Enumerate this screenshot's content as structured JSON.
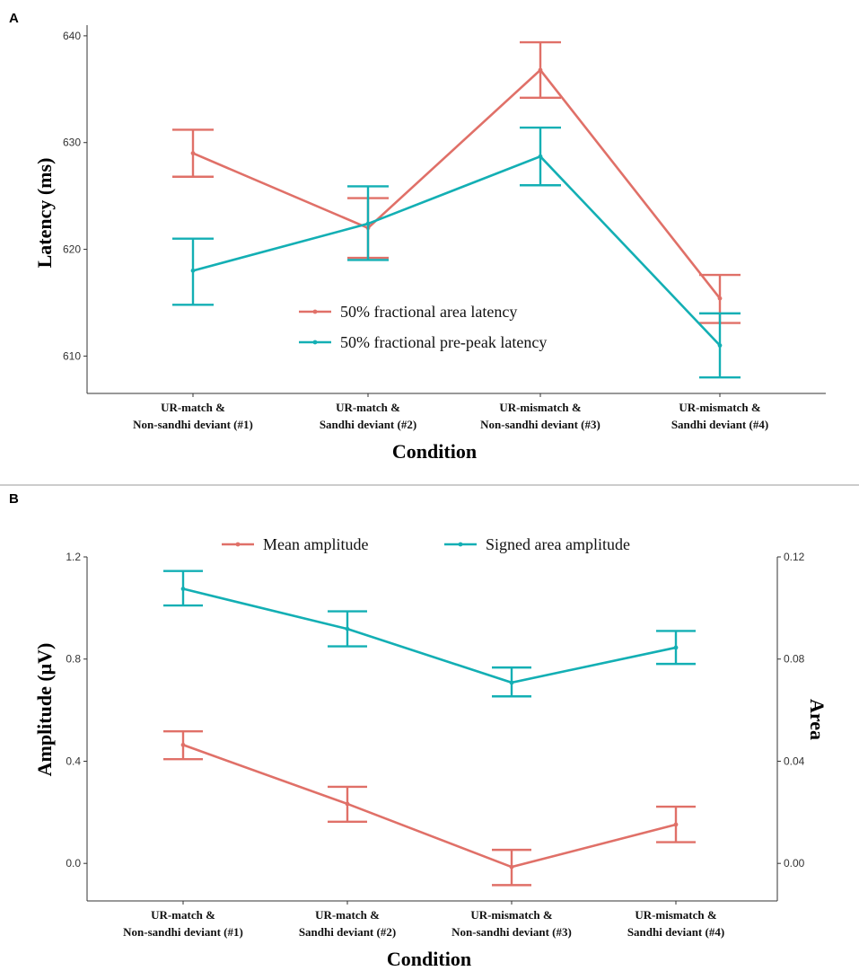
{
  "panels": [
    {
      "letter": "A",
      "type": "line",
      "chart_data": {
        "type": "line",
        "categories": [
          [
            "UR-match &",
            "Non-sandhi deviant (#1)"
          ],
          [
            "UR-match &",
            "Sandhi deviant (#2)"
          ],
          [
            "UR-mismatch &",
            "Non-sandhi deviant (#3)"
          ],
          [
            "UR-mismatch &",
            "Sandhi deviant (#4)"
          ]
        ],
        "xlabel": "Condition",
        "ylabel": "Latency (ms)",
        "ylim": [
          606.5,
          641
        ],
        "yticks": [
          610,
          620,
          630,
          640
        ],
        "yticklabels": [
          "610",
          "620",
          "630",
          "640"
        ],
        "legend_position": "center",
        "series": [
          {
            "name": "50% fractional area latency",
            "color": "#E07068",
            "values": [
              629.0,
              622.0,
              636.8,
              615.4
            ],
            "err_low": [
              626.8,
              619.2,
              634.2,
              613.1
            ],
            "err_high": [
              631.2,
              624.8,
              639.4,
              617.6
            ]
          },
          {
            "name": "50% fractional pre-peak latency",
            "color": "#13AFB4",
            "values": [
              618.0,
              622.4,
              628.7,
              611.0
            ],
            "err_low": [
              614.8,
              619.0,
              626.0,
              608.0
            ],
            "err_high": [
              621.0,
              625.9,
              631.4,
              614.0
            ]
          }
        ]
      }
    },
    {
      "letter": "B",
      "type": "line",
      "chart_data": {
        "type": "line",
        "categories": [
          [
            "UR-match &",
            "Non-sandhi deviant (#1)"
          ],
          [
            "UR-match &",
            "Sandhi deviant (#2)"
          ],
          [
            "UR-mismatch &",
            "Non-sandhi deviant (#3)"
          ],
          [
            "UR-mismatch &",
            "Sandhi deviant (#4)"
          ]
        ],
        "xlabel": "Condition",
        "ylabel": "Amplitude (μV)",
        "ylabel_right": "Area",
        "ylim": [
          -0.147,
          1.2
        ],
        "yticks": [
          0.0,
          0.4,
          0.8,
          1.2
        ],
        "yticklabels": [
          "0.0",
          "0.4",
          "0.8",
          "1.2"
        ],
        "yticklabels_right": [
          "0.00",
          "0.04",
          "0.08",
          "0.12"
        ],
        "legend_position": "top",
        "series": [
          {
            "name": "Mean amplitude",
            "color": "#E07068",
            "values": [
              0.464,
              0.233,
              -0.014,
              0.152
            ],
            "err_low": [
              0.408,
              0.163,
              -0.085,
              0.083
            ],
            "err_high": [
              0.517,
              0.3,
              0.053,
              0.222
            ]
          },
          {
            "name": "Signed area amplitude",
            "color": "#13AFB4",
            "values": [
              1.075,
              0.918,
              0.708,
              0.845
            ],
            "err_low": [
              1.01,
              0.85,
              0.654,
              0.781
            ],
            "err_high": [
              1.145,
              0.987,
              0.767,
              0.91
            ]
          }
        ]
      }
    }
  ]
}
